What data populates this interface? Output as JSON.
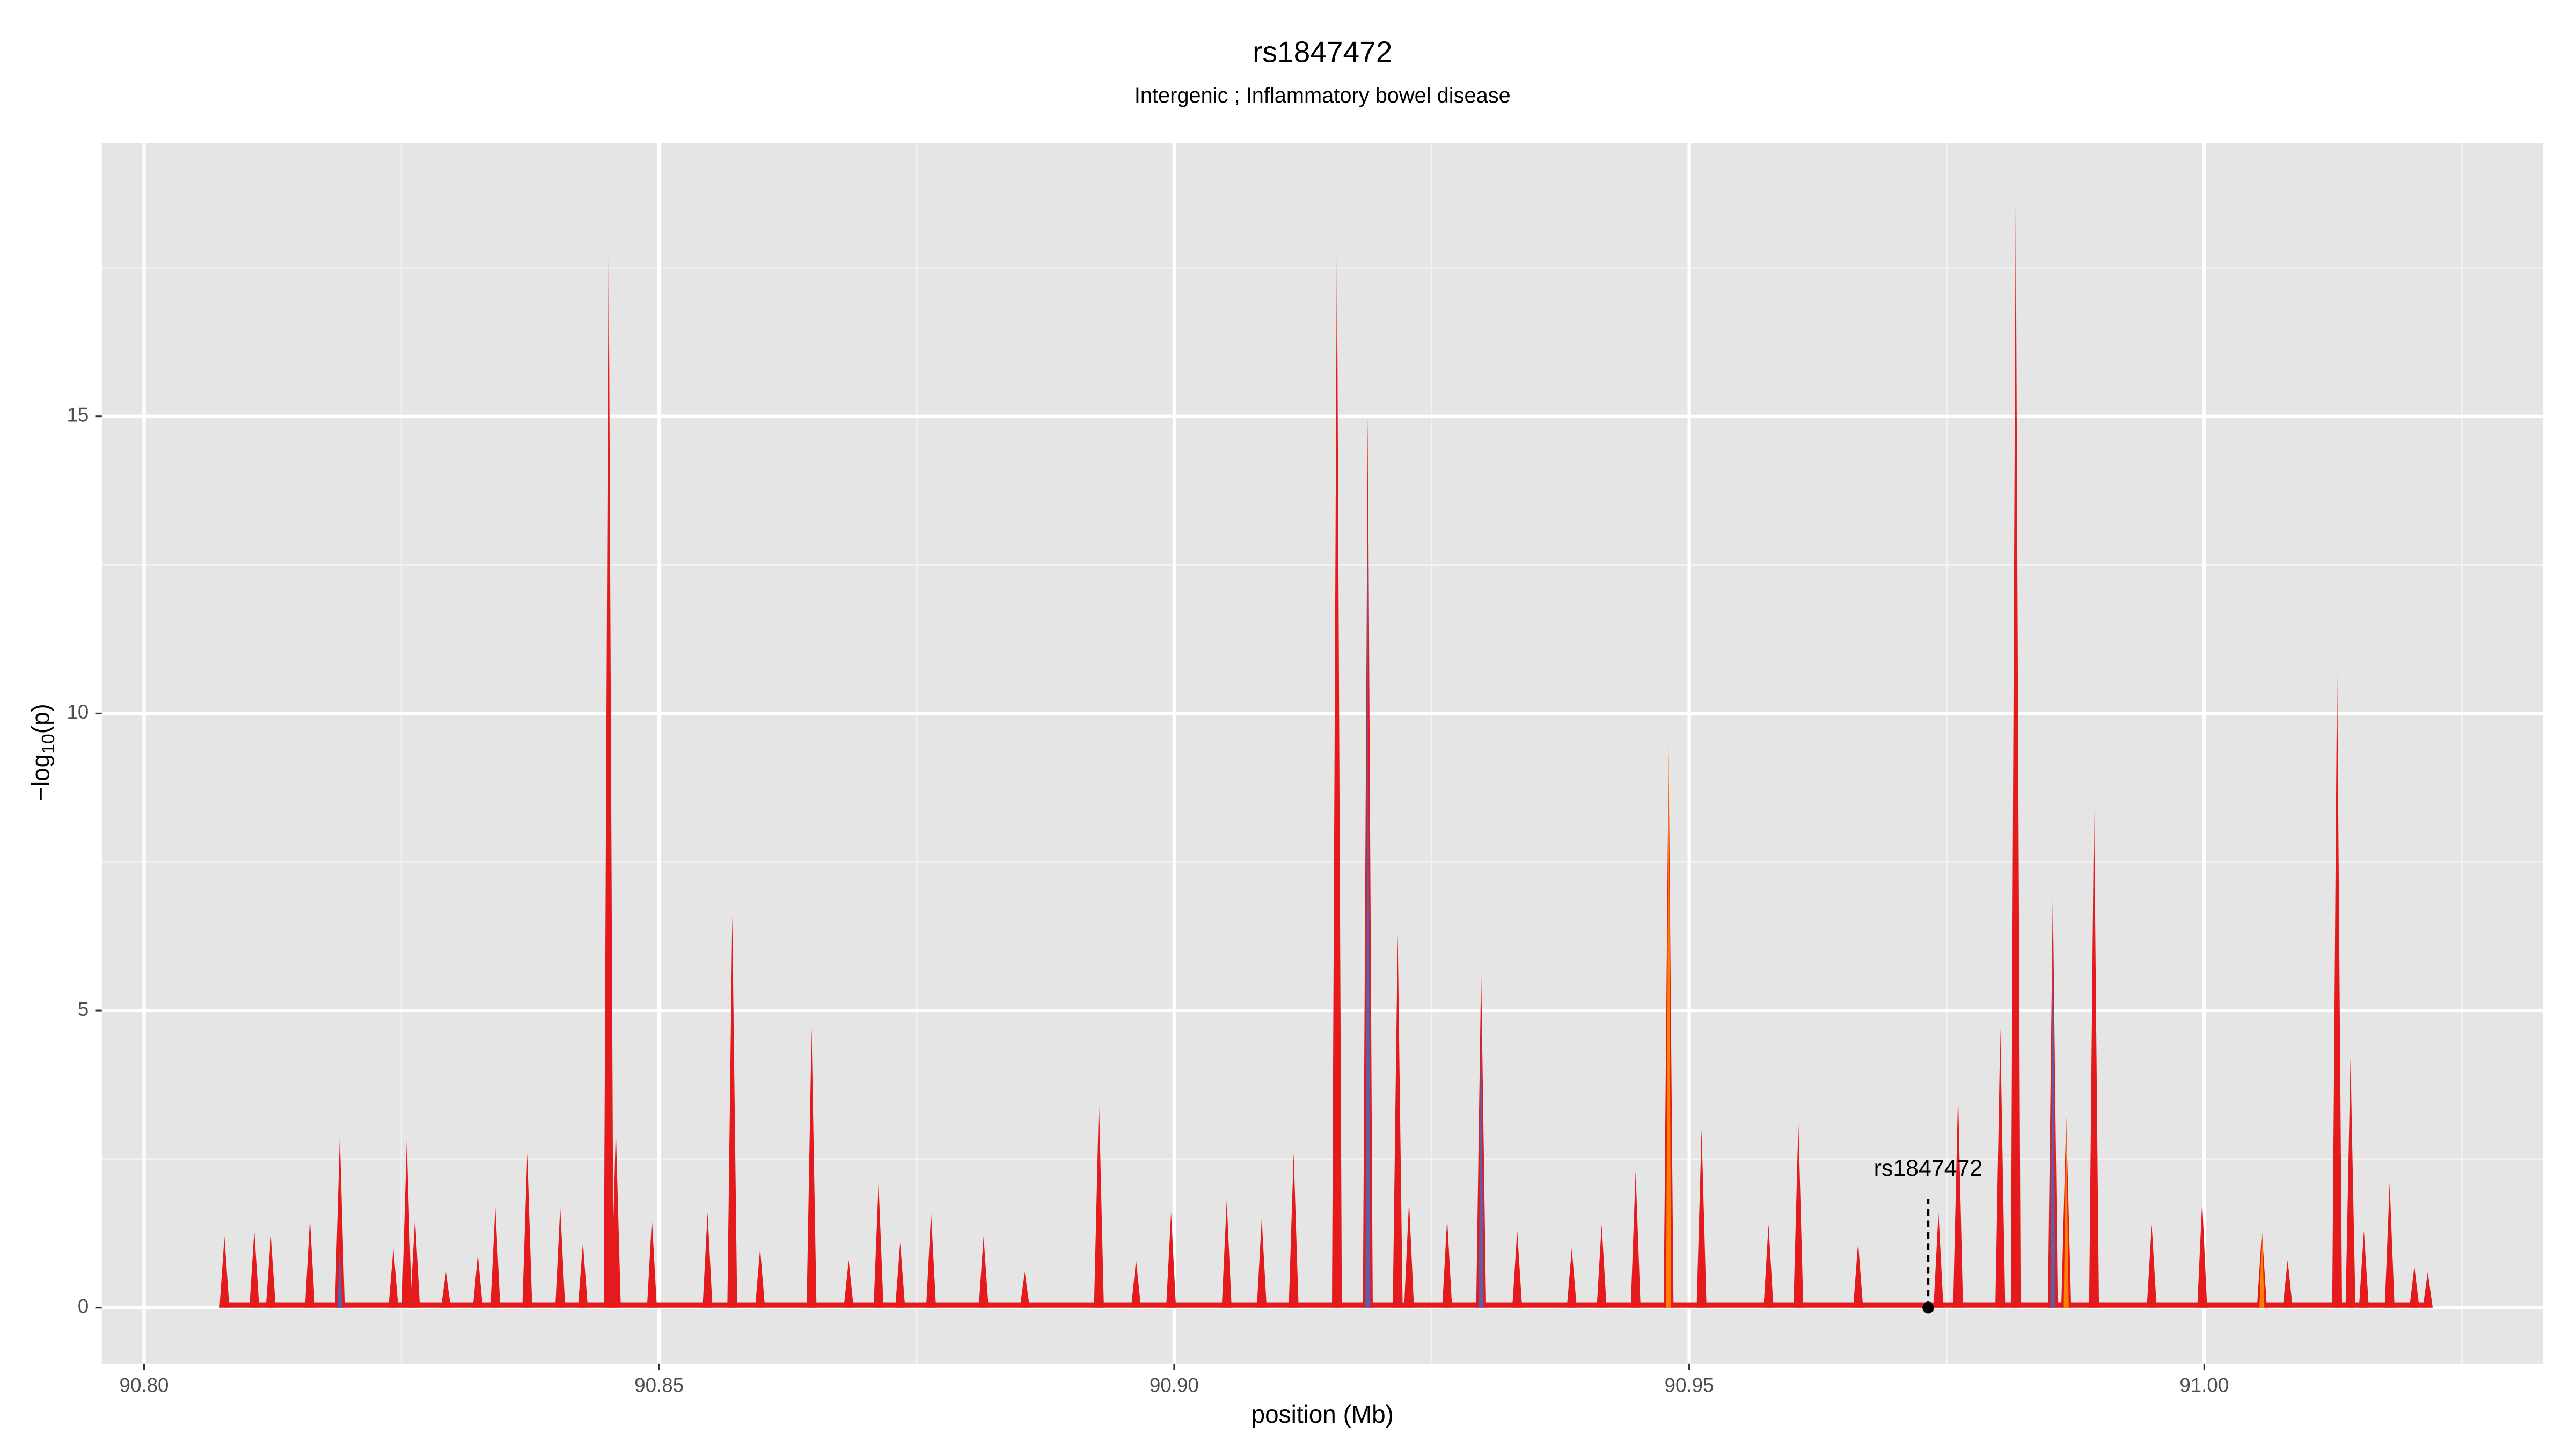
{
  "chart_data": {
    "type": "spike",
    "title": "rs1847472",
    "subtitle": "Intergenic ; Inflammatory bowel disease",
    "xlabel": "position (Mb)",
    "ylabel": [
      "−log",
      "10",
      "(p)"
    ],
    "xlim": [
      90.7959,
      91.0329
    ],
    "ylim": [
      -0.94,
      19.6
    ],
    "xticks": [
      {
        "value": 90.8,
        "label": "90.80"
      },
      {
        "value": 90.85,
        "label": "90.85"
      },
      {
        "value": 90.9,
        "label": "90.90"
      },
      {
        "value": 90.95,
        "label": "90.95"
      },
      {
        "value": 91.0,
        "label": "91.00"
      }
    ],
    "yticks": [
      0,
      5,
      10,
      15
    ],
    "x_minor_grid": [
      90.825,
      90.875,
      90.925,
      90.975,
      91.025
    ],
    "y_minor_grid": [
      2.5,
      7.5,
      12.5,
      17.5
    ],
    "grid": true,
    "series": [
      {
        "color": "#e41a1c",
        "x": [
          90.8078,
          90.8107,
          90.8123,
          90.8161,
          90.819,
          90.8242,
          90.8255,
          90.8263,
          90.8293,
          90.8324,
          90.8341,
          90.8372,
          90.8404,
          90.8426,
          90.8451,
          90.8458,
          90.8493,
          90.8547,
          90.8571,
          90.8598,
          90.8648,
          90.8684,
          90.8713,
          90.8734,
          90.8764,
          90.8815,
          90.8855,
          90.8927,
          90.8963,
          90.8997,
          90.9051,
          90.9085,
          90.9116,
          90.9158,
          90.9188,
          90.9217,
          90.9228,
          90.9265,
          90.9298,
          90.9333,
          90.9386,
          90.9415,
          90.9448,
          90.948,
          90.9512,
          90.9577,
          90.9606,
          90.9664,
          90.9742,
          90.9761,
          90.9802,
          90.9817,
          90.9853,
          90.9866,
          90.9893,
          90.9949,
          90.9998,
          91.0056,
          91.0081,
          91.0129,
          91.0142,
          91.0155,
          91.018,
          91.0204,
          91.0217
        ],
        "values": [
          1.2,
          1.3,
          1.2,
          1.5,
          2.9,
          1.0,
          2.8,
          1.5,
          0.6,
          0.9,
          1.7,
          2.6,
          1.7,
          1.1,
          18.0,
          3.0,
          1.5,
          1.6,
          6.6,
          1.0,
          4.7,
          0.8,
          2.1,
          1.1,
          1.6,
          1.2,
          0.6,
          3.5,
          0.8,
          1.6,
          1.8,
          1.5,
          2.6,
          18.0,
          15.0,
          6.3,
          1.8,
          1.5,
          5.7,
          1.3,
          1.0,
          1.4,
          2.3,
          9.3,
          3.0,
          1.4,
          3.1,
          1.1,
          1.6,
          3.6,
          4.7,
          18.7,
          7.0,
          3.2,
          8.5,
          1.4,
          1.8,
          1.3,
          0.8,
          10.8,
          4.2,
          1.3,
          2.1,
          0.7,
          0.6
        ]
      },
      {
        "color": "#ff7f00",
        "x": [
          90.948,
          90.9866,
          91.0056
        ],
        "values": [
          9.5,
          3.2,
          1.3
        ]
      },
      {
        "color": "#5e5ea8",
        "x": [
          90.819,
          90.9188,
          90.9298,
          90.9853
        ],
        "values": [
          1.0,
          13.0,
          5.0,
          6.5
        ]
      }
    ],
    "annotation": {
      "label": "rs1847472",
      "x": 90.9732,
      "y": 0
    }
  }
}
